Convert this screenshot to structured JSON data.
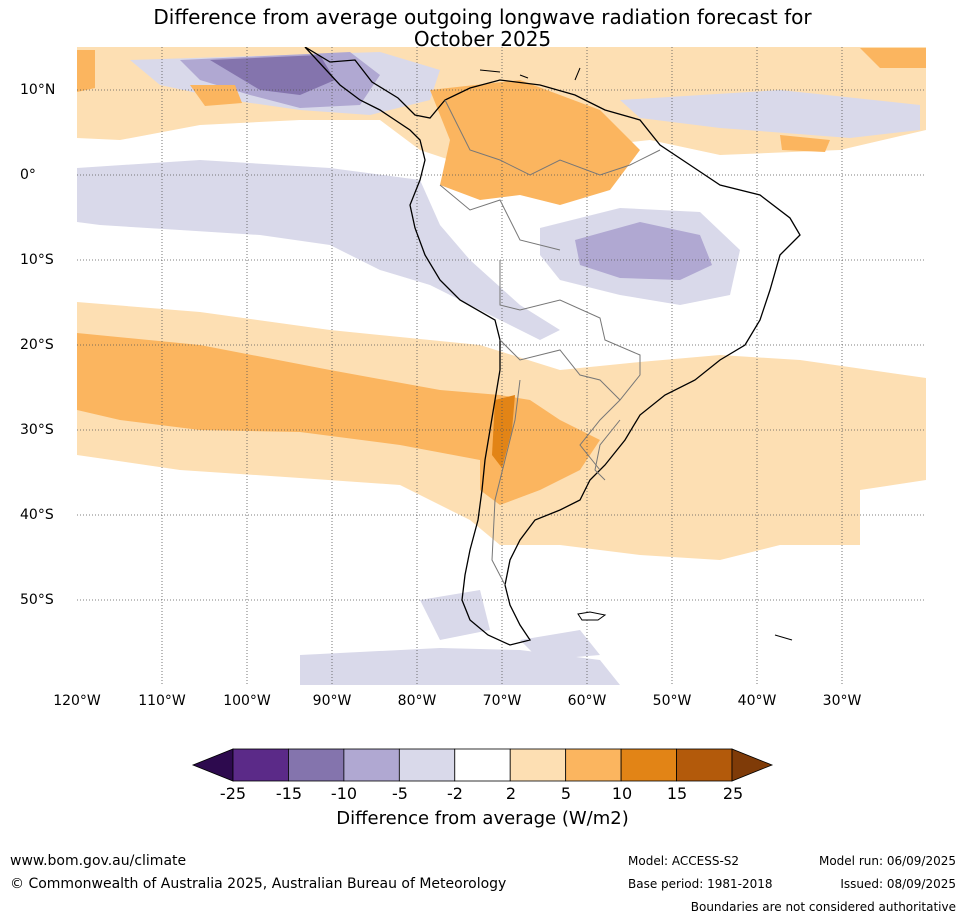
{
  "title": {
    "line1": "Difference from average outgoing longwave radiation forecast for",
    "line2": "October 2025"
  },
  "map": {
    "region": "South America",
    "lat_labels": [
      "10°N",
      "0°",
      "10°S",
      "20°S",
      "30°S",
      "40°S",
      "50°S"
    ],
    "lon_labels": [
      "120°W",
      "110°W",
      "100°W",
      "90°W",
      "80°W",
      "70°W",
      "60°W",
      "50°W",
      "40°W",
      "30°W"
    ]
  },
  "colorbar": {
    "tick_labels": [
      "-25",
      "-15",
      "-10",
      "-5",
      "-2",
      "2",
      "5",
      "10",
      "15",
      "25"
    ],
    "colors": [
      "#5b2a88",
      "#8474ad",
      "#b0a8d2",
      "#d9d9ea",
      "#ffffff",
      "#fddfb3",
      "#fbb55f",
      "#e28416",
      "#b35a0b"
    ],
    "under_color": "#2d0a4e",
    "over_color": "#7f3b08",
    "title": "Difference from average (W/m2)"
  },
  "footer": {
    "website": "www.bom.gov.au/climate",
    "copyright": "© Commonwealth of Australia 2025, Australian Bureau of Meteorology",
    "model": "Model: ACCESS-S2",
    "base_period": "Base period: 1981-2018",
    "model_run": "Model run: 06/09/2025",
    "issued": "Issued: 08/09/2025",
    "disclaimer": "Boundaries are not considered authoritative"
  }
}
